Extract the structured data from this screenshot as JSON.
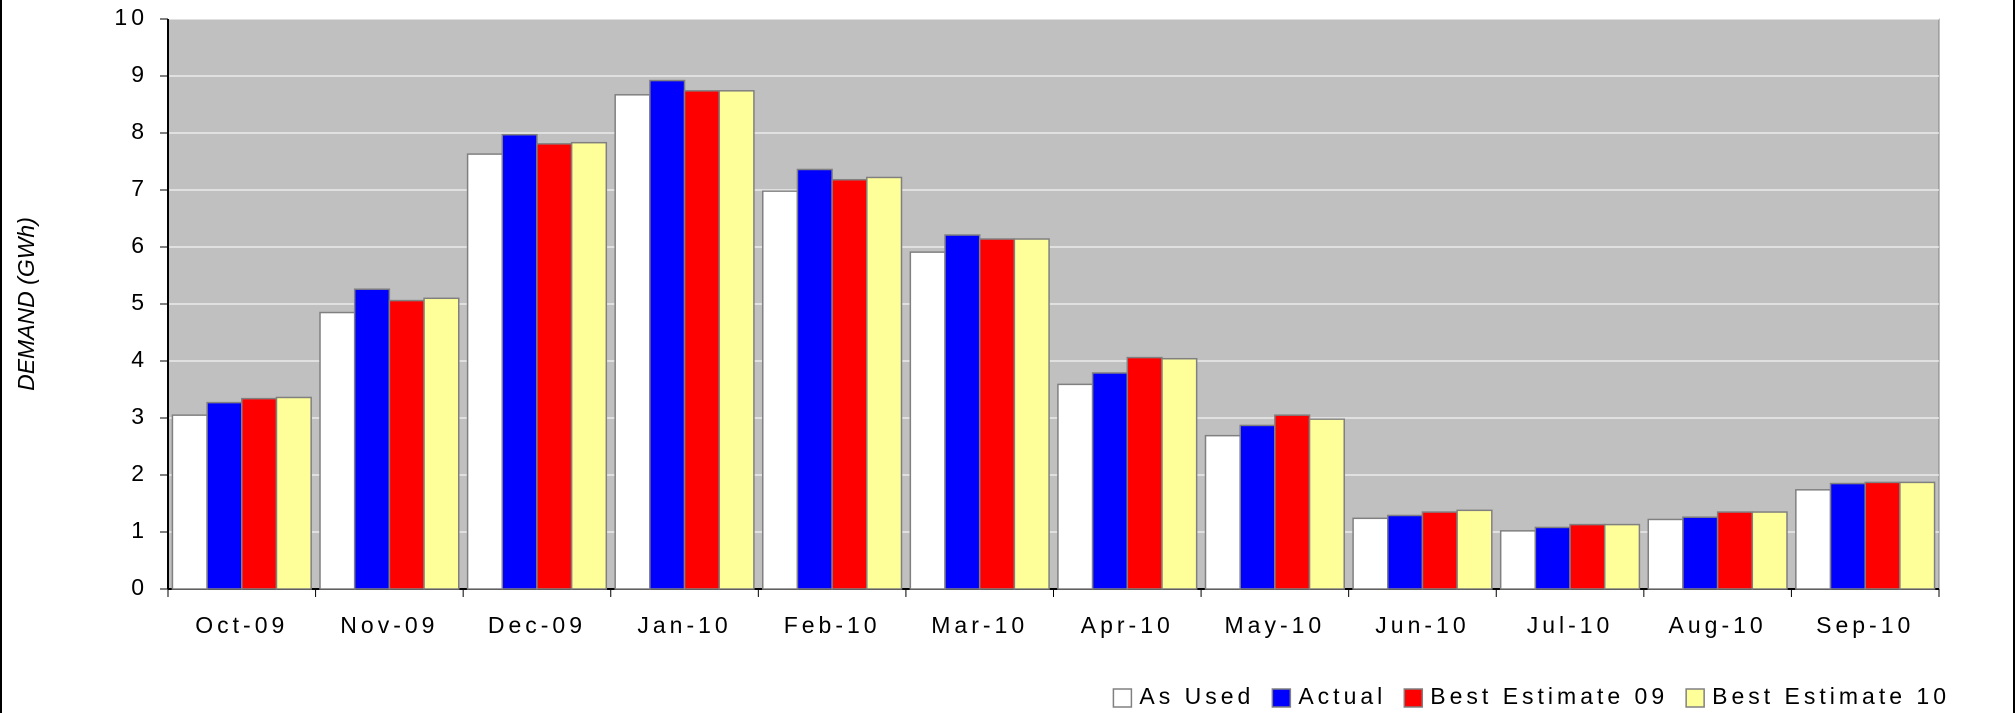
{
  "chart_data": {
    "type": "bar",
    "y_label": "DEMAND (GWh)",
    "categories": [
      "Oct-09",
      "Nov-09",
      "Dec-09",
      "Jan-10",
      "Feb-10",
      "Mar-10",
      "Apr-10",
      "May-10",
      "Jun-10",
      "Jul-10",
      "Aug-10",
      "Sep-10"
    ],
    "series": [
      {
        "name": "As Used",
        "color": "#ffffff",
        "values": [
          3.05,
          4.85,
          7.63,
          8.67,
          6.98,
          5.91,
          3.59,
          2.69,
          1.24,
          1.02,
          1.22,
          1.74
        ]
      },
      {
        "name": "Actual",
        "color": "#0000ff",
        "values": [
          3.27,
          5.26,
          7.97,
          8.92,
          7.36,
          6.21,
          3.79,
          2.87,
          1.29,
          1.08,
          1.26,
          1.85
        ]
      },
      {
        "name": "Best Estimate 09",
        "color": "#ff0000",
        "values": [
          3.34,
          5.06,
          7.81,
          8.74,
          7.18,
          6.14,
          4.06,
          3.05,
          1.35,
          1.13,
          1.35,
          1.87
        ]
      },
      {
        "name": "Best Estimate 10",
        "color": "#ffff99",
        "values": [
          3.36,
          5.1,
          7.83,
          8.74,
          7.22,
          6.14,
          4.04,
          2.98,
          1.38,
          1.13,
          1.35,
          1.87
        ]
      }
    ],
    "ylim": [
      0,
      10
    ],
    "yticks": [
      0,
      1,
      2,
      3,
      4,
      5,
      6,
      7,
      8,
      9,
      10
    ],
    "grid": true,
    "legend": "bottom-right"
  }
}
